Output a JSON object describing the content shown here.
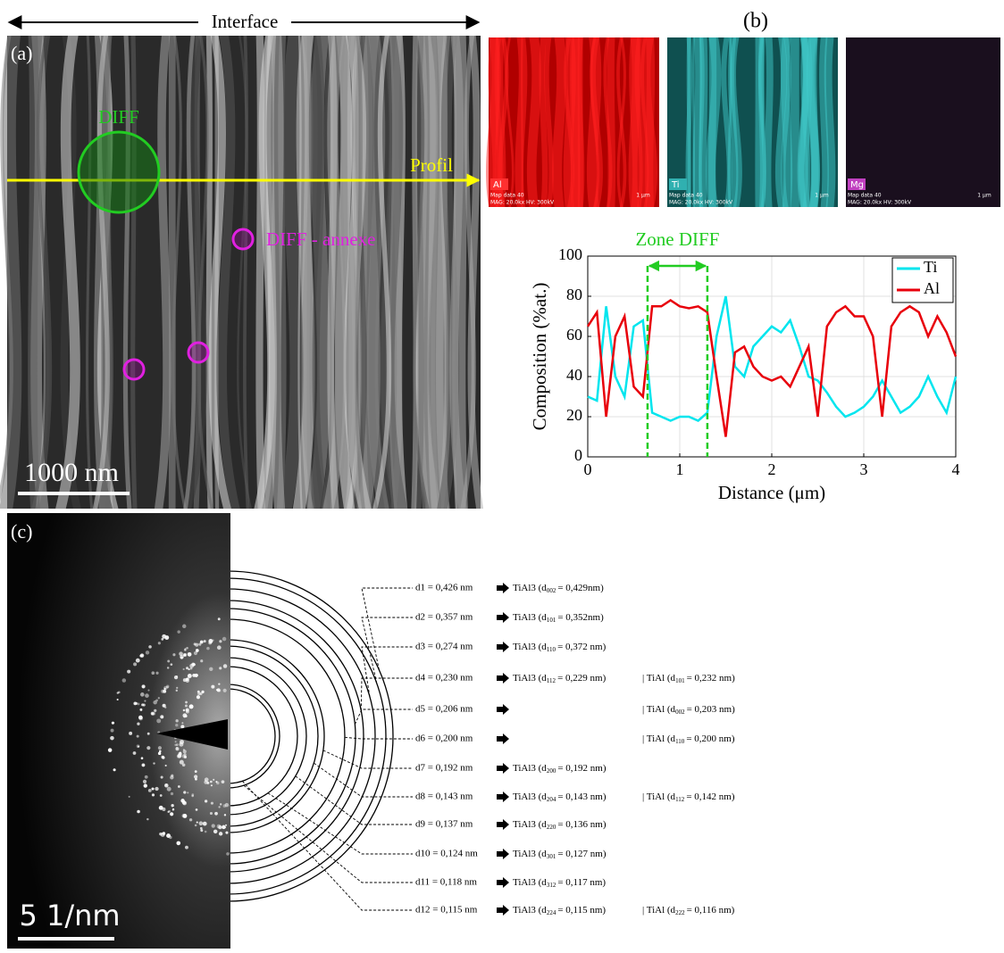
{
  "figure": {
    "interface_label": "Interface",
    "panel_a": {
      "label": "(a)",
      "diff": "DIFF",
      "profil": "Profil",
      "annexe": "DIFF - annexe",
      "scale": "1000 nm"
    },
    "panel_b": {
      "label": "(b)",
      "maps": [
        {
          "element": "Al",
          "info1": "Map data 40",
          "info2": "MAG: 20.0kx  HV: 300kV",
          "scale": "1 µm"
        },
        {
          "element": "Ti",
          "info1": "Map data 40",
          "info2": "MAG: 20.0kx  HV: 300kV",
          "scale": "1 µm"
        },
        {
          "element": "Mg",
          "info1": "Map data 40",
          "info2": "MAG: 20.0kx  HV: 300kV",
          "scale": "1 µm"
        }
      ]
    },
    "panel_c": {
      "label": "(c)",
      "scale": "5 1/nm",
      "rows": [
        {
          "spacing": "d1 = 0,426 nm",
          "p1": "TiAl3 (d",
          "h1": "002",
          "v1": "= 0,429nm)"
        },
        {
          "spacing": "d2 = 0,357 nm",
          "p1": "TiAl3 (d",
          "h1": "101",
          "v1": "= 0,352nm)"
        },
        {
          "spacing": "d3 = 0,274 nm",
          "p1": "TiAl3 (d",
          "h1": "110",
          "v1": "= 0,372 nm)"
        },
        {
          "spacing": "d4 = 0,230 nm",
          "p1": "TiAl3 (d",
          "h1": "112",
          "v1": "= 0,229 nm)",
          "p2": "| TiAl (d",
          "h2": "101",
          "v2": "= 0,232 nm)"
        },
        {
          "spacing": "d5 = 0,206 nm",
          "p2": "| TiAl (d",
          "h2": "002",
          "v2": "= 0,203 nm)"
        },
        {
          "spacing": "d6 = 0,200 nm",
          "p2": "| TiAl (d",
          "h2": "110",
          "v2": "= 0,200 nm)"
        },
        {
          "spacing": "d7 = 0,192 nm",
          "p1": "TiAl3 (d",
          "h1": "200",
          "v1": "= 0,192 nm)"
        },
        {
          "spacing": "d8 = 0,143 nm",
          "p1": "TiAl3 (d",
          "h1": "204",
          "v1": "= 0,143 nm)",
          "p2": "| TiAl (d",
          "h2": "112",
          "v2": "= 0,142 nm)"
        },
        {
          "spacing": "d9 = 0,137 nm",
          "p1": "TiAl3 (d",
          "h1": "220",
          "v1": "= 0,136 nm)"
        },
        {
          "spacing": "d10 = 0,124 nm",
          "p1": "TiAl3 (d",
          "h1": "301",
          "v1": "= 0,127 nm)"
        },
        {
          "spacing": "d11 = 0,118 nm",
          "p1": "TiAl3 (d",
          "h1": "312",
          "v1": "= 0,117 nm)"
        },
        {
          "spacing": "d12 = 0,115 nm",
          "p1": "TiAl3 (d",
          "h1": "224",
          "v1": "= 0,115 nm)",
          "p2": "| TiAl (d",
          "h2": "222",
          "v2": "= 0,116 nm)"
        }
      ]
    }
  },
  "chart_data": {
    "type": "line",
    "x_label": "Distance (μm)",
    "y_label": "Composition (%at.)",
    "x": [
      0,
      0.1,
      0.2,
      0.3,
      0.4,
      0.5,
      0.6,
      0.7,
      0.8,
      0.9,
      1.0,
      1.1,
      1.2,
      1.3,
      1.4,
      1.5,
      1.6,
      1.7,
      1.8,
      1.9,
      2.0,
      2.1,
      2.2,
      2.3,
      2.4,
      2.5,
      2.6,
      2.7,
      2.8,
      2.9,
      3.0,
      3.1,
      3.2,
      3.3,
      3.4,
      3.5,
      3.6,
      3.7,
      3.8,
      3.9,
      4.0
    ],
    "series": [
      {
        "name": "Ti",
        "color": "#00e5ee",
        "values": [
          30,
          28,
          75,
          40,
          30,
          65,
          68,
          22,
          20,
          18,
          20,
          20,
          18,
          22,
          60,
          80,
          45,
          40,
          55,
          60,
          65,
          62,
          68,
          55,
          40,
          38,
          32,
          25,
          20,
          22,
          25,
          30,
          38,
          30,
          22,
          25,
          30,
          40,
          30,
          22,
          40
        ]
      },
      {
        "name": "Al",
        "color": "#e8000b",
        "values": [
          65,
          72,
          20,
          60,
          70,
          35,
          30,
          75,
          75,
          78,
          75,
          74,
          75,
          72,
          40,
          10,
          52,
          55,
          45,
          40,
          38,
          40,
          35,
          45,
          55,
          20,
          65,
          72,
          75,
          70,
          70,
          60,
          20,
          65,
          72,
          75,
          72,
          60,
          70,
          62,
          50
        ]
      }
    ],
    "xlim": [
      0,
      4
    ],
    "xticks": [
      0,
      1,
      2,
      3,
      4
    ],
    "ylim": [
      0,
      100
    ],
    "yticks": [
      0,
      20,
      40,
      60,
      80,
      100
    ],
    "grid": true,
    "legend": "upper right",
    "zone": {
      "text": "Zone DIFF",
      "color": "#22cc22",
      "x_range": [
        0.65,
        1.3
      ]
    }
  }
}
